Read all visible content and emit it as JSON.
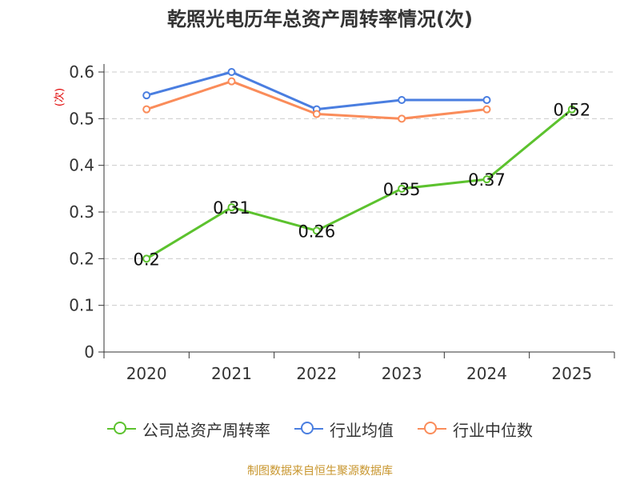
{
  "chart_data": {
    "type": "line",
    "title": "乾照光电历年总资产周转率情况(次)",
    "ylabel": "(次)",
    "categories": [
      "2020",
      "2021",
      "2022",
      "2023",
      "2024",
      "2025"
    ],
    "ylim": [
      0,
      0.6
    ],
    "yticks": [
      "0",
      "0.1",
      "0.2",
      "0.3",
      "0.4",
      "0.5",
      "0.6"
    ],
    "grid": true,
    "legend_position": "bottom",
    "series": [
      {
        "name": "公司总资产周转率",
        "color": "#5cc22e",
        "values": [
          0.2,
          0.31,
          0.26,
          0.35,
          0.37,
          0.52
        ],
        "data_labels": [
          "0.2",
          "0.31",
          "0.26",
          "0.35",
          "0.37",
          "0.52"
        ]
      },
      {
        "name": "行业均值",
        "color": "#4a7ee0",
        "values": [
          0.55,
          0.6,
          0.52,
          0.54,
          0.54,
          null
        ]
      },
      {
        "name": "行业中位数",
        "color": "#fa8c5a",
        "values": [
          0.52,
          0.58,
          0.51,
          0.5,
          0.52,
          null
        ]
      }
    ]
  },
  "footer": {
    "source": "制图数据来自恒生聚源数据库"
  }
}
